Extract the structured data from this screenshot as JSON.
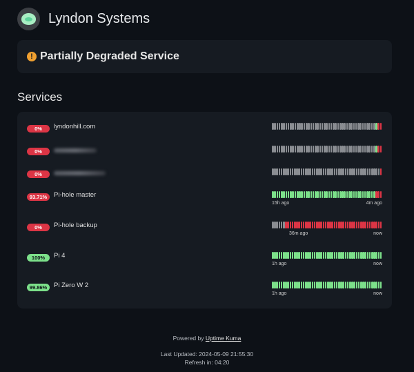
{
  "header": {
    "title": "Lyndon Systems",
    "logo_icon": "uptime-kuma-logo-icon"
  },
  "banner": {
    "text": "Partially Degraded Service",
    "icon": "exclamation-icon",
    "color": "#f0a030"
  },
  "services_title": "Services",
  "colors": {
    "up": "#7ce08a",
    "down": "#dc3545",
    "empty": "#8a8d92",
    "card": "#161b22",
    "background": "#0d1117"
  },
  "services": [
    {
      "uptime": "0%",
      "status": "red",
      "name": "lyndonhill.com",
      "blurred": false,
      "beats": "ggggggggggggggggggggggggggggggggggggggggggggggGRR",
      "start_label": "",
      "mid_label": "",
      "end_label": ""
    },
    {
      "uptime": "0%",
      "status": "red",
      "name": "",
      "blurred": true,
      "beats": "ggggggggggggggggggggggggggggggggggggggggggggggGRR",
      "start_label": "",
      "mid_label": "",
      "end_label": ""
    },
    {
      "uptime": "0%",
      "status": "red",
      "name": "",
      "blurred": true,
      "beats": "gggggggggggggggggggggggggggggggggggggggggggggggggR",
      "start_label": "",
      "mid_label": "",
      "end_label": ""
    },
    {
      "uptime": "93.71%",
      "status": "red",
      "name": "Pi-hole master",
      "blurred": false,
      "beats": "GGGGGGGGGGGGGGGGGGGGGGGGGGGGGGGGGGGGGGGGGGGGGGRRR",
      "start_label": "15h ago",
      "mid_label": "",
      "end_label": "4m ago"
    },
    {
      "uptime": "0%",
      "status": "red",
      "name": "Pi-hole backup",
      "blurred": false,
      "beats": "ggggggRRRRRRRRRRRRRRRRRRRRRRRRRRRRRRRRRRRRRRRRRRRR",
      "start_label": "",
      "mid_label": "36m ago",
      "end_label": "now"
    },
    {
      "uptime": "100%",
      "status": "green",
      "name": "Pi 4",
      "blurred": false,
      "beats": "GGGGGGGGGGGGGGGGGGGGGGGGGGGGGGGGGGGGGGGGGGGGGGGGGG",
      "start_label": "1h ago",
      "mid_label": "",
      "end_label": "now"
    },
    {
      "uptime": "99.86%",
      "status": "green",
      "name": "Pi Zero W 2",
      "blurred": false,
      "beats": "GGGGGGGGGGGGGGGGGGGGGGGGGGGGGGGGGGGGGGGGGGGGGGGGGG",
      "start_label": "1h ago",
      "mid_label": "",
      "end_label": "now"
    }
  ],
  "footer": {
    "powered_by": "Powered by",
    "powered_link": "Uptime Kuma",
    "last_updated": "Last Updated: 2024-05-09 21:55:30",
    "refresh": "Refresh in: 04:20"
  }
}
